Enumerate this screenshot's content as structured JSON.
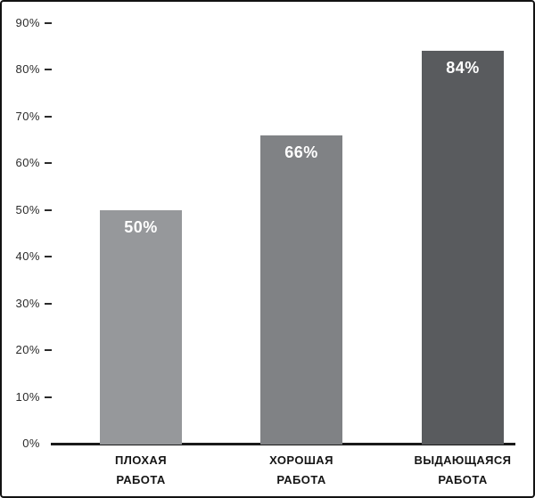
{
  "chart_data": {
    "type": "bar",
    "title": "",
    "xlabel": "",
    "ylabel": "",
    "categories": [
      "ПЛОХАЯ\nРАБОТА",
      "ХОРОШАЯ\nРАБОТА",
      "ВЫДАЮЩАЯСЯ\nРАБОТА"
    ],
    "values": [
      50,
      66,
      84
    ],
    "value_labels": [
      "50%",
      "66%",
      "84%"
    ],
    "bar_colors": [
      "#96989b",
      "#808285",
      "#595b5e"
    ],
    "value_label_color": "#ffffff",
    "y_tick_values": [
      90,
      80,
      70,
      60,
      50,
      40,
      30,
      20,
      10,
      0
    ],
    "y_ticks": [
      "90%",
      "80%",
      "70%",
      "60%",
      "50%",
      "40%",
      "30%",
      "20%",
      "10%",
      "0%"
    ],
    "ylim": [
      0,
      90
    ],
    "grid": false,
    "legend": "none",
    "axis_color": "#1a1a1a",
    "tick_color": "#2b2b2b",
    "frame_border_color": "#121212",
    "background": "#ffffff"
  }
}
